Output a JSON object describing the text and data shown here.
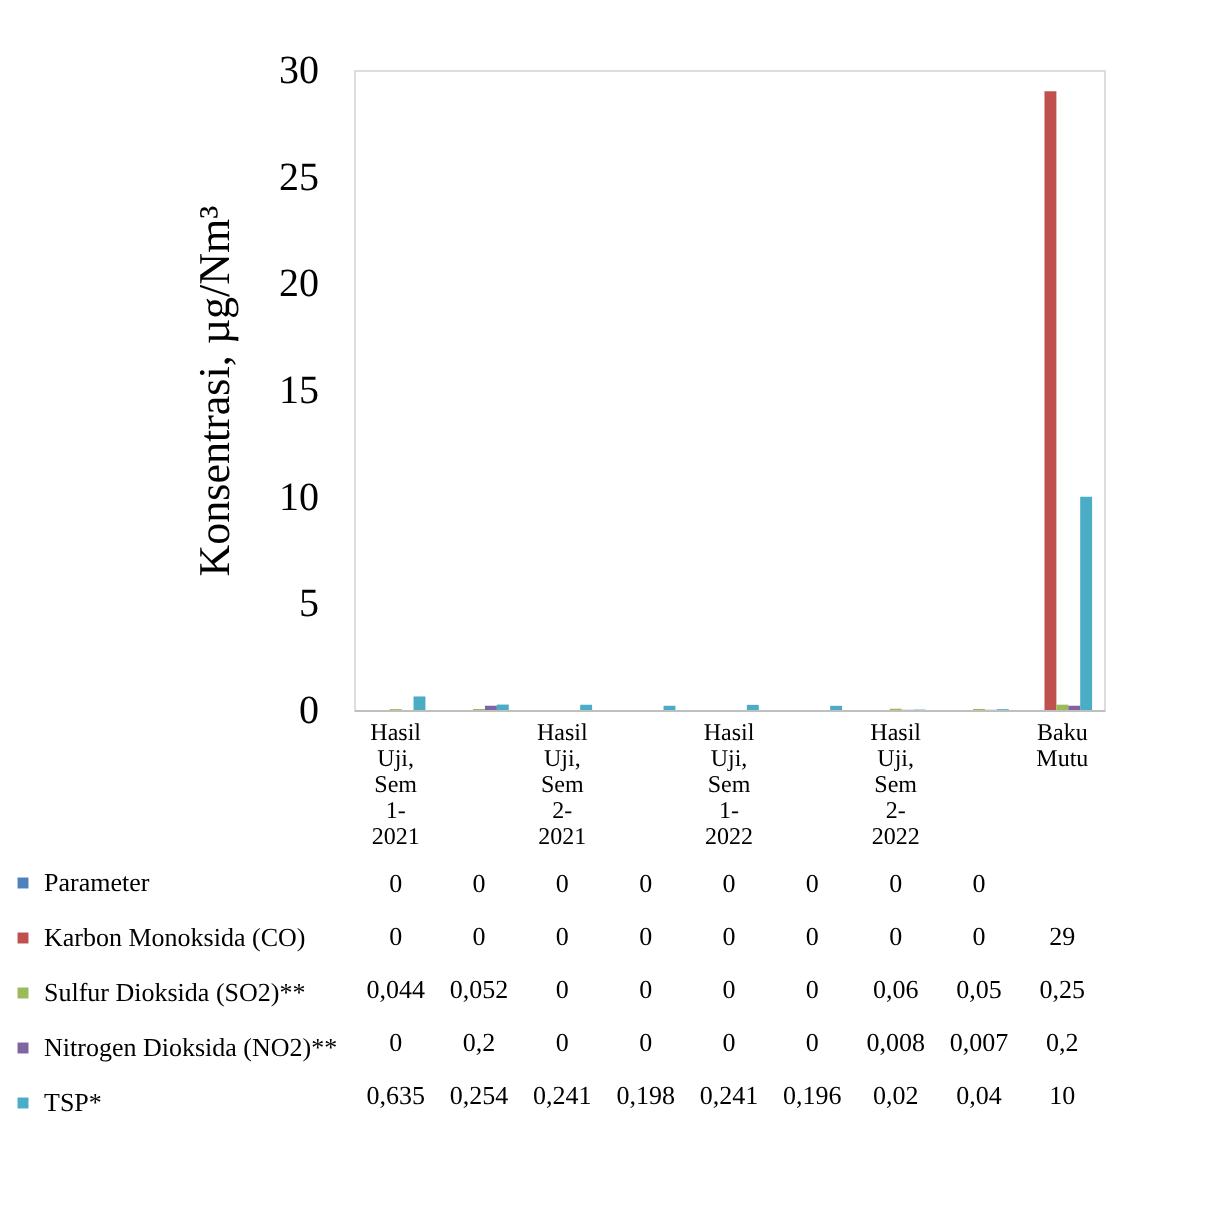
{
  "chart_data": {
    "type": "bar",
    "ylabel": "Konsentrasi, µg/Nm³",
    "categories": [
      "Hasil Uji, Sem 1-2021",
      null,
      "Hasil Uji, Sem 2-2021",
      null,
      "Hasil Uji, Sem 1-2022",
      null,
      "Hasil Uji, Sem 2-2022",
      null,
      "Baku Mutu"
    ],
    "series": [
      {
        "name": "Parameter",
        "color": "#4f81bd",
        "values": [
          0,
          0,
          0,
          0,
          0,
          0,
          0,
          0,
          null
        ],
        "value_labels": [
          "0",
          "0",
          "0",
          "0",
          "0",
          "0",
          "0",
          "0",
          null
        ]
      },
      {
        "name": "Karbon Monoksida (CO)",
        "color": "#c0504d",
        "values": [
          0,
          0,
          0,
          0,
          0,
          0,
          0,
          0,
          29
        ],
        "value_labels": [
          "0",
          "0",
          "0",
          "0",
          "0",
          "0",
          "0",
          "0",
          "29"
        ]
      },
      {
        "name": "Sulfur Dioksida (SO2)**",
        "color": "#9bbb59",
        "values": [
          0.044,
          0.052,
          0,
          0,
          0,
          0,
          0.06,
          0.05,
          0.25
        ],
        "value_labels": [
          "0,044",
          "0,052",
          "0",
          "0",
          "0",
          "0",
          "0,06",
          "0,05",
          "0,25"
        ]
      },
      {
        "name": "Nitrogen Dioksida (NO2)**",
        "color": "#8064a2",
        "values": [
          0,
          0.2,
          0,
          0,
          0,
          0,
          0.008,
          0.007,
          0.2
        ],
        "value_labels": [
          "0",
          "0,2",
          "0",
          "0",
          "0",
          "0",
          "0,008",
          "0,007",
          "0,2"
        ]
      },
      {
        "name": "TSP*",
        "color": "#4bacc6",
        "values": [
          0.635,
          0.254,
          0.241,
          0.198,
          0.241,
          0.196,
          0.02,
          0.04,
          10
        ],
        "value_labels": [
          "0,635",
          "0,254",
          "0,241",
          "0,198",
          "0,241",
          "0,196",
          "0,02",
          "0,04",
          "10"
        ]
      }
    ],
    "ylim": [
      0,
      30
    ],
    "yticks": [
      0,
      5,
      10,
      15,
      20,
      25,
      30
    ],
    "grid": false,
    "legend": "bottom"
  }
}
